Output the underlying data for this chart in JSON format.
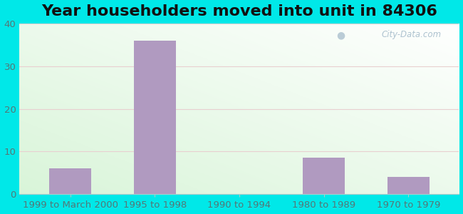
{
  "title": "Year householders moved into unit in 84306",
  "categories": [
    "1999 to March 2000",
    "1995 to 1998",
    "1990 to 1994",
    "1980 to 1989",
    "1970 to 1979"
  ],
  "values": [
    6,
    36,
    0,
    8.5,
    4
  ],
  "bar_color": "#b09ac0",
  "ylim": [
    0,
    40
  ],
  "yticks": [
    0,
    10,
    20,
    30,
    40
  ],
  "background_outer": "#00e8e8",
  "title_fontsize": 16,
  "tick_fontsize": 9.5,
  "watermark": "City-Data.com",
  "grid_color": "#e8d0d0",
  "tick_color": "#557777"
}
